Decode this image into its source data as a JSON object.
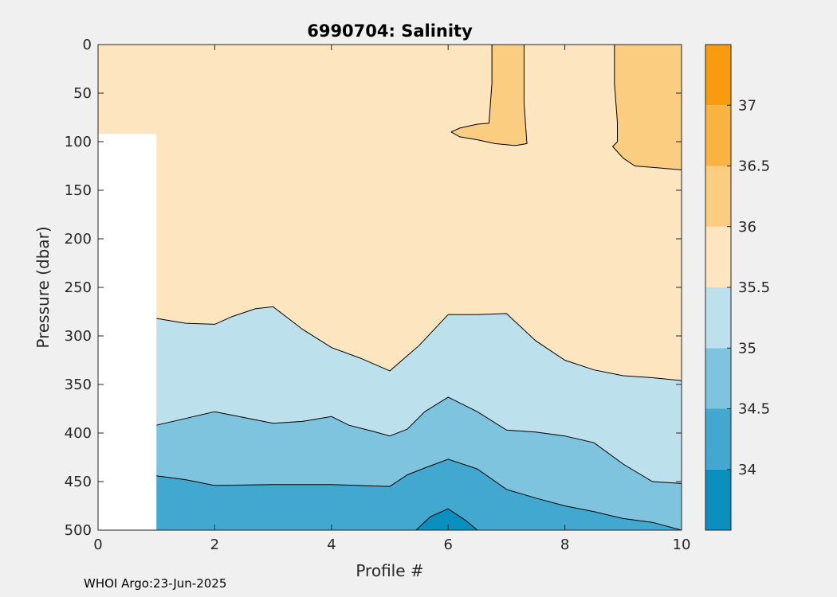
{
  "chart_data": {
    "type": "contourf",
    "title": "6990704:  Salinity",
    "xlabel": "Profile #",
    "ylabel": "Pressure (dbar)",
    "xlim": [
      0,
      10
    ],
    "ylim": [
      500,
      0
    ],
    "x_ticks": [
      0,
      2,
      4,
      6,
      8,
      10
    ],
    "y_ticks": [
      0,
      50,
      100,
      150,
      200,
      250,
      300,
      350,
      400,
      450,
      500
    ],
    "colorbar": {
      "range": [
        33.5,
        37.5
      ],
      "ticks": [
        34,
        34.5,
        35,
        35.5,
        36,
        36.5,
        37
      ],
      "levels": [
        {
          "from": 33.5,
          "to": 34.0,
          "color": "#0a8fbf"
        },
        {
          "from": 34.0,
          "to": 34.5,
          "color": "#42a8cf"
        },
        {
          "from": 34.5,
          "to": 35.0,
          "color": "#7fc4de"
        },
        {
          "from": 35.0,
          "to": 35.5,
          "color": "#bde0ed"
        },
        {
          "from": 35.5,
          "to": 36.0,
          "color": "#fde6bf"
        },
        {
          "from": 36.0,
          "to": 36.5,
          "color": "#facd80"
        },
        {
          "from": 36.5,
          "to": 37.0,
          "color": "#f9b340"
        },
        {
          "from": 37.0,
          "to": 37.5,
          "color": "#f99b0f"
        }
      ]
    },
    "contours": [
      {
        "name": "35.5",
        "x": [
          1,
          1.5,
          2,
          2.3,
          2.7,
          3,
          3.5,
          4,
          4.5,
          5,
          5.5,
          6,
          6.5,
          7,
          7.5,
          8,
          8.5,
          9,
          9.5,
          10
        ],
        "y": [
          282,
          287,
          288,
          280,
          272,
          270,
          293,
          312,
          323,
          336,
          310,
          278,
          278,
          277,
          305,
          325,
          335,
          341,
          343,
          346
        ]
      },
      {
        "name": "35.0",
        "x": [
          1,
          1.5,
          2,
          2.5,
          3,
          3.5,
          4,
          4.3,
          4.7,
          5,
          5.3,
          5.6,
          6,
          6.5,
          7,
          7.5,
          8,
          8.5,
          9,
          9.5,
          10
        ],
        "y": [
          392,
          385,
          378,
          384,
          390,
          388,
          383,
          392,
          398,
          403,
          396,
          378,
          363,
          378,
          397,
          399,
          403,
          410,
          432,
          450,
          452
        ]
      },
      {
        "name": "34.5",
        "x": [
          1,
          1.5,
          2,
          3,
          4,
          5,
          5.3,
          5.6,
          6,
          6.5,
          7,
          7.5,
          8,
          8.5,
          9,
          9.5,
          10
        ],
        "y": [
          444,
          448,
          454,
          453,
          453,
          455,
          443,
          436,
          427,
          437,
          458,
          467,
          475,
          481,
          488,
          492,
          500
        ]
      },
      {
        "name": "34.0",
        "x": [
          5.45,
          5.7,
          6,
          6.3,
          6.5
        ],
        "y": [
          500,
          486,
          478,
          490,
          500
        ]
      },
      {
        "name": "36.0 (profile 7)",
        "x": [
          6.05,
          6.2,
          6.5,
          6.7,
          6.75,
          6.75,
          7.3,
          7.3,
          7.35,
          7.15,
          6.8,
          6.5,
          6.2,
          6.05
        ],
        "y": [
          90,
          86,
          82,
          81,
          40,
          0,
          0,
          60,
          102,
          104,
          102,
          98,
          95,
          90
        ]
      },
      {
        "name": "36.0 (profiles 9-10)",
        "x": [
          8.85,
          8.85,
          8.9,
          8.9,
          8.82,
          9.0,
          9.2,
          9.6,
          10,
          10
        ],
        "y": [
          0,
          40,
          80,
          100,
          105,
          117,
          125,
          127,
          129,
          0
        ]
      }
    ]
  },
  "footer": {
    "credit": "WHOI Argo:23-Jun-2025"
  }
}
